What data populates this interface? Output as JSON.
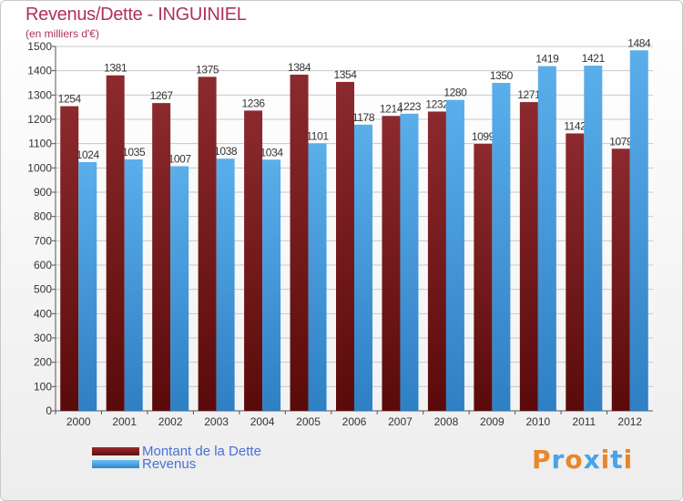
{
  "title": "Revenus/Dette - INGUINIEL",
  "subtitle": "(en milliers d'€)",
  "legend": {
    "items": [
      {
        "label": "Montant de la Dette",
        "color": "#7a1e1e"
      },
      {
        "label": "Revenus",
        "color": "#4aa3e6"
      }
    ]
  },
  "logo": {
    "text": "Proxiti",
    "letters": [
      "P",
      "r",
      "o",
      "x",
      "i",
      "t",
      "i"
    ],
    "colors": [
      "#e8862a",
      "#4aa3e6",
      "#e8862a",
      "#4aa3e6",
      "#e8862a",
      "#4aa3e6",
      "#e8862a"
    ]
  },
  "chart_data": {
    "type": "bar",
    "categories": [
      "2000",
      "2001",
      "2002",
      "2003",
      "2004",
      "2005",
      "2006",
      "2007",
      "2008",
      "2009",
      "2010",
      "2011",
      "2012"
    ],
    "series": [
      {
        "name": "Montant de la Dette",
        "color": "#7a1e1e",
        "values": [
          1254,
          1381,
          1267,
          1375,
          1236,
          1384,
          1354,
          1214,
          1232,
          1099,
          1271,
          1142,
          1079
        ],
        "labels": [
          "1254",
          "1381",
          "1267",
          "1375",
          "1236",
          "1384",
          "1354",
          "1214",
          "1232",
          "1099",
          "1271",
          "1142",
          "1079"
        ]
      },
      {
        "name": "Revenus",
        "color": "#4aa3e6",
        "values": [
          1024,
          1035,
          1007,
          1038,
          1034,
          1101,
          1178,
          1223,
          1280,
          1350,
          1419,
          1421,
          1484
        ],
        "labels": [
          "1024",
          "1035",
          "1007",
          "1038",
          "1034",
          "1101",
          "1178",
          "1223",
          "1280",
          "1350",
          "1419",
          "1421",
          "1484"
        ]
      }
    ],
    "ylim": [
      0,
      1500
    ],
    "yticks": [
      0,
      100,
      200,
      300,
      400,
      500,
      600,
      700,
      800,
      900,
      1000,
      1100,
      1200,
      1300,
      1400,
      1500
    ],
    "grid": true,
    "legend_position": "bottom-left"
  }
}
